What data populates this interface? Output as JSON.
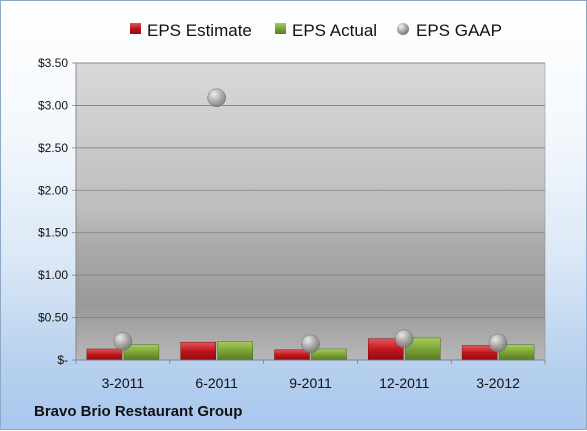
{
  "company_label": "Bravo Brio Restaurant Group",
  "colors": {
    "estimate": "#c0161c",
    "actual": "#6f9a2a",
    "gaap": "#9aa0a6"
  },
  "chart_data": {
    "type": "bar",
    "categories": [
      "3-2011",
      "6-2011",
      "9-2011",
      "12-2011",
      "3-2012"
    ],
    "series": [
      {
        "name": "EPS Estimate",
        "kind": "bar",
        "values": [
          0.13,
          0.21,
          0.12,
          0.25,
          0.17
        ]
      },
      {
        "name": "EPS Actual",
        "kind": "bar",
        "values": [
          0.18,
          0.22,
          0.13,
          0.26,
          0.18
        ]
      },
      {
        "name": "EPS GAAP",
        "kind": "marker",
        "values": [
          0.22,
          3.09,
          0.19,
          0.25,
          0.2
        ]
      }
    ],
    "ylim": [
      0,
      3.5
    ],
    "yticks": [
      0,
      0.5,
      1.0,
      1.5,
      2.0,
      2.5,
      3.0,
      3.5
    ],
    "ytick_labels": [
      "$-",
      "$0.50",
      "$1.00",
      "$1.50",
      "$2.00",
      "$2.50",
      "$3.00",
      "$3.50"
    ],
    "legend_position": "top",
    "grid": true
  }
}
